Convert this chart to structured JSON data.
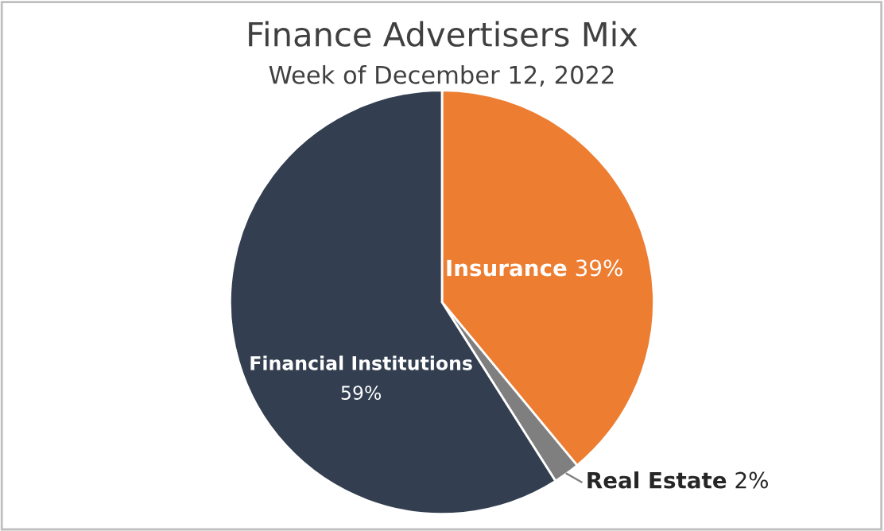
{
  "chart_data": {
    "type": "pie",
    "title": "Finance Advertisers Mix",
    "subtitle": "Week of December 12, 2022",
    "categories": [
      "Insurance",
      "Real Estate",
      "Financial Institutions"
    ],
    "values": [
      39,
      2,
      59
    ],
    "colors": [
      "#ed7d31",
      "#7f7f7f",
      "#333f50"
    ],
    "value_labels": [
      "39%",
      "2%",
      "59%"
    ],
    "legend": false
  }
}
